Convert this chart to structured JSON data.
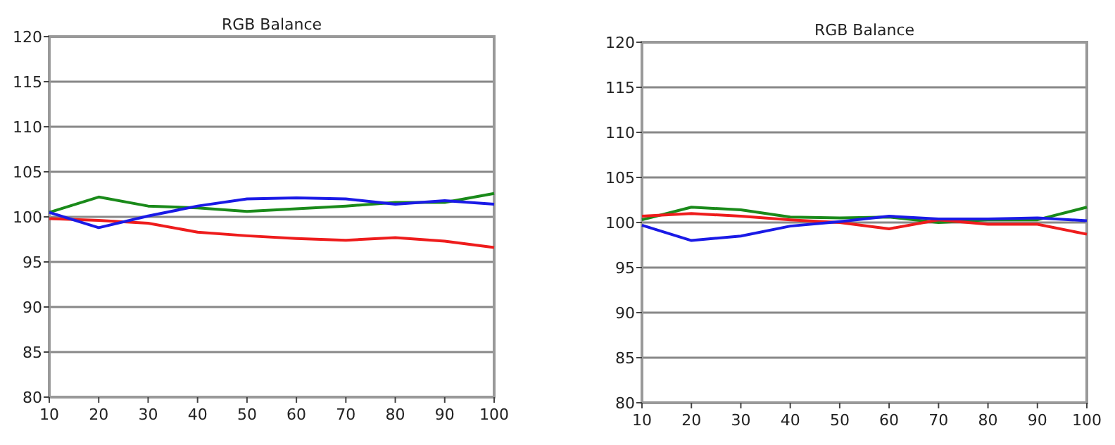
{
  "chart_data": [
    {
      "type": "line",
      "title": "RGB Balance",
      "x": [
        10,
        20,
        30,
        40,
        50,
        60,
        70,
        80,
        90,
        100
      ],
      "xlim": [
        10,
        100
      ],
      "xticks": [
        10,
        20,
        30,
        40,
        50,
        60,
        70,
        80,
        90,
        100
      ],
      "ylim": [
        80,
        120
      ],
      "yticks": [
        80,
        85,
        90,
        95,
        100,
        105,
        110,
        115,
        120
      ],
      "grid": "y",
      "marker": "none",
      "line_style": "solid",
      "series": [
        {
          "color": "#1a8a1a",
          "values": [
            100.5,
            102.2,
            101.2,
            101.0,
            100.6,
            100.9,
            101.2,
            101.6,
            101.6,
            102.6
          ]
        },
        {
          "color": "#ee1c1c",
          "values": [
            99.8,
            99.6,
            99.3,
            98.3,
            97.9,
            97.6,
            97.4,
            97.7,
            97.3,
            96.6
          ]
        },
        {
          "color": "#1a1ae6",
          "values": [
            100.5,
            98.8,
            100.1,
            101.2,
            102.0,
            102.1,
            102.0,
            101.4,
            101.8,
            101.4
          ]
        }
      ]
    },
    {
      "type": "line",
      "title": "RGB Balance",
      "x": [
        10,
        20,
        30,
        40,
        50,
        60,
        70,
        80,
        90,
        100
      ],
      "xlim": [
        10,
        100
      ],
      "xticks": [
        10,
        20,
        30,
        40,
        50,
        60,
        70,
        80,
        90,
        100
      ],
      "ylim": [
        80,
        120
      ],
      "yticks": [
        80,
        85,
        90,
        95,
        100,
        105,
        110,
        115,
        120
      ],
      "grid": "y",
      "marker": "none",
      "line_style": "solid",
      "series": [
        {
          "color": "#1a8a1a",
          "values": [
            100.3,
            101.7,
            101.4,
            100.6,
            100.5,
            100.6,
            100.0,
            100.3,
            100.3,
            101.7
          ]
        },
        {
          "color": "#ee1c1c",
          "values": [
            100.7,
            101.0,
            100.7,
            100.3,
            100.0,
            99.3,
            100.3,
            99.8,
            99.8,
            98.7
          ]
        },
        {
          "color": "#1a1ae6",
          "values": [
            99.7,
            98.0,
            98.5,
            99.6,
            100.1,
            100.7,
            100.4,
            100.4,
            100.5,
            100.2
          ]
        }
      ]
    }
  ]
}
